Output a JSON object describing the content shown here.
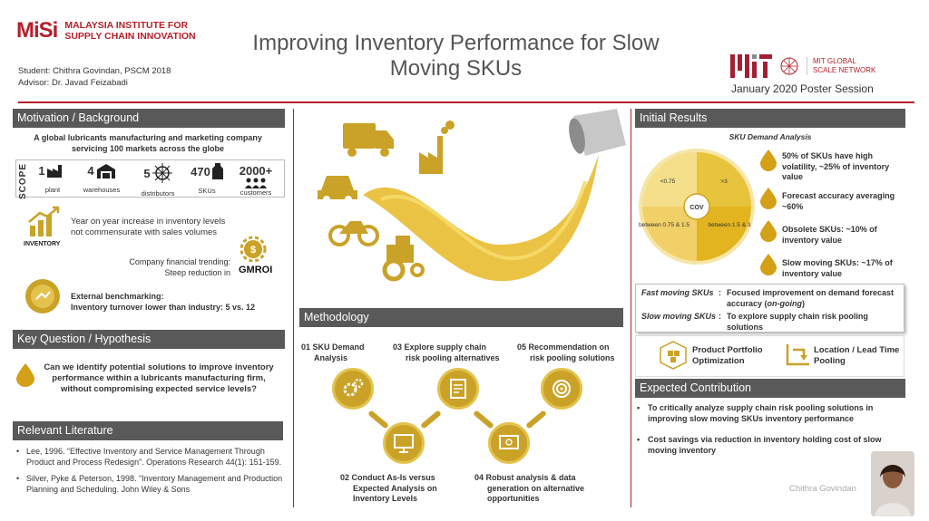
{
  "header": {
    "misi_mark": "MiSi",
    "misi_line1": "MALAYSIA INSTITUTE FOR",
    "misi_line2": "SUPPLY CHAIN INNOVATION",
    "title_line1": "Improving Inventory Performance for Slow",
    "title_line2": "Moving SKUs",
    "student": "Student: Chithra Govindan, PSCM 2018",
    "advisor": "Advisor: Dr. Javad Feizabadi",
    "gsn_line1": "MIT GLOBAL",
    "gsn_line2": "SCALE NETWORK",
    "session": "January 2020 Poster Session"
  },
  "motivation": {
    "heading": "Motivation / Background",
    "description": "A global lubricants manufacturing and marketing company servicing 100 markets across the globe",
    "scope_label": "SCOPE",
    "scope_items": [
      {
        "num": "1",
        "cap": "plant"
      },
      {
        "num": "4",
        "cap": "warehouses"
      },
      {
        "num": "5",
        "cap": "distributors"
      },
      {
        "num": "470",
        "cap": "SKUs"
      },
      {
        "num": "2000+",
        "cap": "customers"
      }
    ],
    "inventory_label": "INVENTORY",
    "inventory_text": "Year on year increase in inventory levels not commensurate with sales volumes",
    "trend_line1": "Company financial trending:",
    "trend_line2": "Steep reduction in",
    "gmroi": "GMROI",
    "bench_line1": "External benchmarking:",
    "bench_line2": "Inventory turnover lower than industry: 5 vs. 12"
  },
  "key_question": {
    "heading": "Key Question / Hypothesis",
    "text": "Can we identify potential solutions to improve inventory performance within a lubricants manufacturing firm, without compromising expected service levels?"
  },
  "literature": {
    "heading": "Relevant Literature",
    "items": [
      "Lee, 1996. “Effective Inventory and Service Management Through Product and Process Redesign”. Operations Research 44(1): 151-159.",
      "Silver, Pyke & Peterson, 1998. “Inventory Management and Production Planning and Scheduling. John Wiley & Sons"
    ]
  },
  "methodology": {
    "heading": "Methodology",
    "steps": [
      {
        "num": "01",
        "line1": "SKU Demand",
        "line2": "Analysis"
      },
      {
        "num": "02",
        "line1": "Conduct As-Is versus",
        "line2": "Expected Analysis on",
        "line3": "Inventory Levels"
      },
      {
        "num": "03",
        "line1": "Explore supply chain",
        "line2": "risk pooling alternatives"
      },
      {
        "num": "04",
        "line1": "Robust analysis & data",
        "line2": "generation on alternative",
        "line3": "opportunities"
      },
      {
        "num": "05",
        "line1": "Recommendation on",
        "line2": "risk pooling solutions"
      }
    ]
  },
  "initial_results": {
    "heading": "Initial Results",
    "chart_title": "SKU Demand Analysis",
    "pie_center": "COV",
    "pie_labels": [
      "<0.75",
      ">3",
      "between 0.75 & 1.5",
      "between 1.5 & 3"
    ],
    "findings": [
      "50% of SKUs have high volatility, ~25% of inventory value",
      "Forecast accuracy averaging ~60%",
      "Obsolete SKUs: ~10% of inventory value",
      "Slow moving SKUs: ~17% of inventory value"
    ],
    "fast_key": "Fast moving SKUs",
    "fast_val_a": "Focused improvement on demand forecast accuracy (",
    "fast_val_italic": "on-going",
    "fast_val_b": ")",
    "slow_key": "Slow moving SKUs",
    "slow_val": "To explore supply chain risk pooling solutions",
    "colon": ":",
    "portfolio": "Product Portfolio Optimization",
    "location": "Location / Lead Time Pooling"
  },
  "expected": {
    "heading": "Expected Contribution",
    "items": [
      "To critically analyze supply chain risk pooling solutions in improving slow moving SKUs inventory performance",
      "Cost savings via reduction in inventory holding cost of slow moving inventory"
    ]
  },
  "author": "Chithra Govindan",
  "colors": {
    "accent": "#b5202a",
    "gold": "#c9a227",
    "header_bg": "#595959"
  }
}
